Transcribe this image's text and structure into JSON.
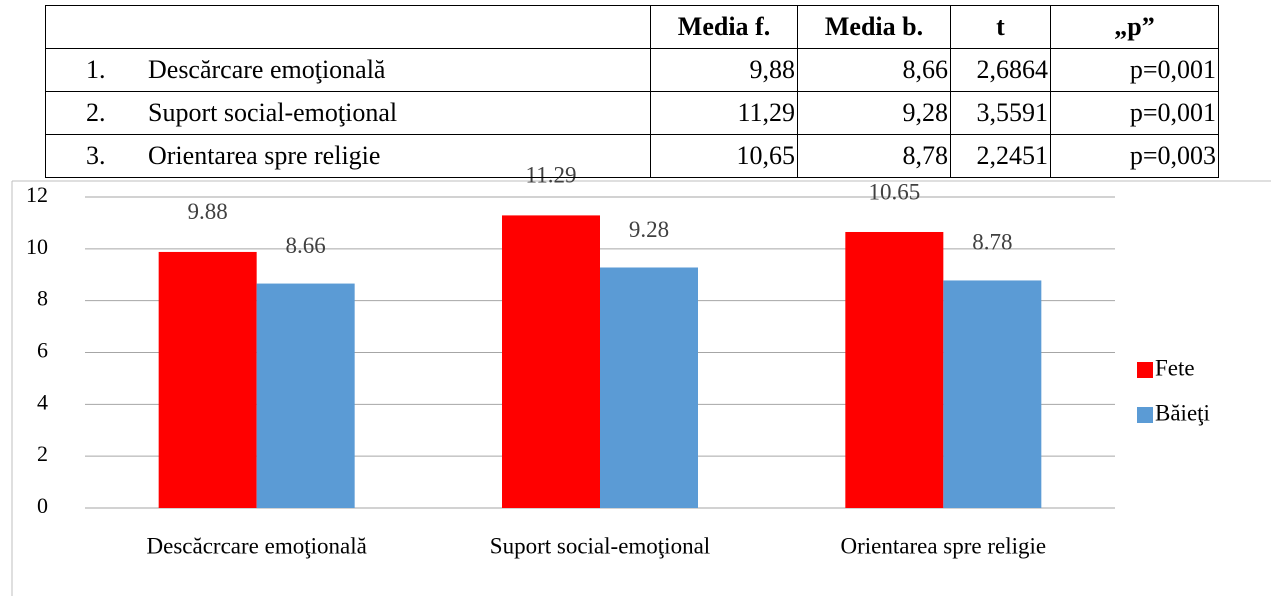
{
  "table": {
    "header": [
      "Media f.",
      "Media b.",
      "t",
      "„p”"
    ],
    "rows": [
      [
        "1.",
        "Descărcare emoţională",
        "9,88",
        "8,66",
        "2,6864",
        "p=0,001"
      ],
      [
        "2.",
        "Suport social-emoţional",
        "11,29",
        "9,28",
        "3,5591",
        "p=0,001"
      ],
      [
        "3.",
        "Orientarea spre religie",
        "10,65",
        "8,78",
        "2,2451",
        "p=0,003"
      ]
    ]
  },
  "chart_data": {
    "type": "bar",
    "categories": [
      "Descăcrcare emoţională",
      "Suport social-emoţional",
      "Orientarea spre religie"
    ],
    "series": [
      {
        "name": "Fete",
        "color": "#ff0000",
        "values": [
          9.88,
          11.29,
          10.65
        ]
      },
      {
        "name": "Băieţi",
        "color": "#5b9bd5",
        "values": [
          8.66,
          9.28,
          8.78
        ]
      }
    ],
    "ylim": [
      0,
      12
    ],
    "yticks": [
      0,
      2,
      4,
      6,
      8,
      10,
      12
    ],
    "grid": true,
    "legend": "right"
  }
}
